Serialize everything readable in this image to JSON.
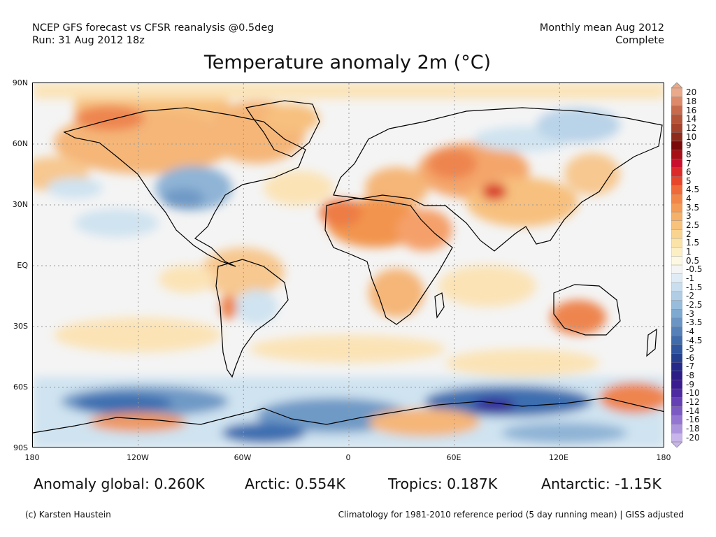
{
  "header": {
    "source": "NCEP GFS forecast vs CFSR reanalysis @0.5deg",
    "run": "Run: 31 Aug 2012 18z",
    "period": "Monthly mean Aug 2012",
    "status": "Complete"
  },
  "title": "Temperature anomaly 2m (°C)",
  "map": {
    "lat_labels": [
      "90N",
      "60N",
      "30N",
      "EQ",
      "30S",
      "60S",
      "90S"
    ],
    "lon_labels": [
      "180",
      "120W",
      "60W",
      "0",
      "60E",
      "120E",
      "180"
    ],
    "colors": {
      "ocean_background": "#f4f4f4",
      "warm_light": "#fbe3b6",
      "warm_medium": "#f5b678",
      "warm_strong": "#ee8550",
      "warm_extreme": "#c8102e",
      "cool_light": "#cfe3f0",
      "cool_medium": "#8fb4d6",
      "cool_strong": "#3e6eb0",
      "cool_extreme": "#3a2a9a",
      "coastline": "#000000",
      "gridline": "#999999"
    }
  },
  "colorbar": {
    "labels": [
      "20",
      "18",
      "16",
      "14",
      "12",
      "10",
      "9",
      "8",
      "7",
      "6",
      "5",
      "4.5",
      "4",
      "3.5",
      "3",
      "2.5",
      "2",
      "1.5",
      "1",
      "0.5",
      "-0.5",
      "-1",
      "-1.5",
      "-2",
      "-2.5",
      "-3",
      "-3.5",
      "-4",
      "-4.5",
      "-5",
      "-6",
      "-7",
      "-8",
      "-9",
      "-10",
      "-12",
      "-14",
      "-16",
      "-18",
      "-20"
    ],
    "colors": [
      "#e9a98a",
      "#dc8a6a",
      "#c86b4c",
      "#b4553a",
      "#a5422c",
      "#8e2a1c",
      "#7a0a0a",
      "#a50f15",
      "#c8102e",
      "#dc2a2a",
      "#e8462a",
      "#ef6a3a",
      "#f28648",
      "#f39c58",
      "#f5b06a",
      "#f7c27c",
      "#f9d490",
      "#fbe3a8",
      "#fcefc4",
      "#fdf8e2",
      "#f4f4f4",
      "#e0ecf5",
      "#c9deee",
      "#b0cde5",
      "#98bcdb",
      "#7fa9d0",
      "#6a95c4",
      "#5581b8",
      "#416cac",
      "#2f569e",
      "#233f8e",
      "#24298a",
      "#2b1d85",
      "#3a1c90",
      "#4d2aa0",
      "#6540b2",
      "#7c5ac4",
      "#9476d2",
      "#ad95de",
      "#c8b6ea"
    ]
  },
  "stats": {
    "global": "Anomaly global: 0.260K",
    "arctic": "Arctic: 0.554K",
    "tropics": "Tropics: 0.187K",
    "antarctic": "Antarctic: -1.15K"
  },
  "footer": {
    "credit": "(c) Karsten Haustein",
    "note": "Climatology for 1981-2010 reference period (5 day running mean) | GISS adjusted"
  }
}
